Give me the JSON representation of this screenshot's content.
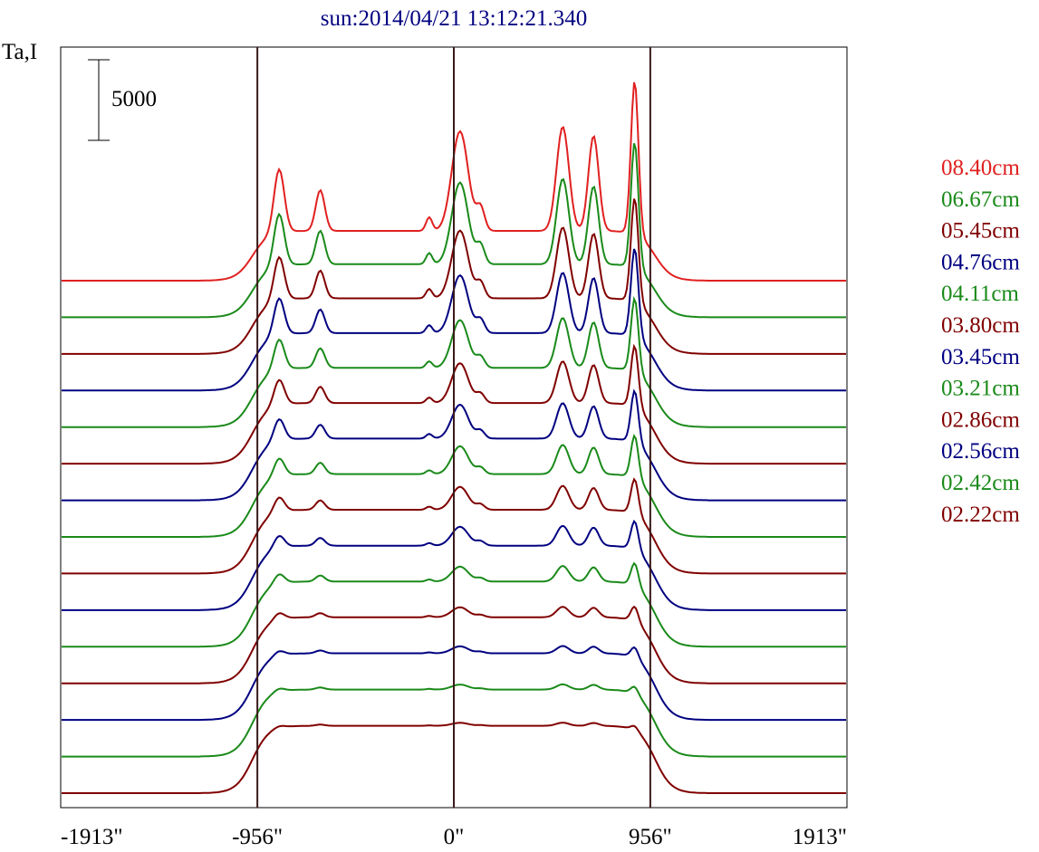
{
  "chart_data": {
    "type": "line",
    "title": "sun:2014/04/21 13:12:21.340",
    "ylabel": "Ta,I",
    "scale_bar_label": "5000",
    "scale_bar_value": 5000,
    "x_ticks": [
      "-1913\"",
      "-956\"",
      "0\"",
      "956\"",
      "1913\""
    ],
    "x_tick_values": [
      -1913,
      -956,
      0,
      956,
      1913
    ],
    "xlim": [
      -1913,
      1913
    ],
    "vertical_lines": [
      -956,
      0,
      956
    ],
    "legend": [
      {
        "label": "08.40cm",
        "color": "#e02020"
      },
      {
        "label": "06.67cm",
        "color": "#1a8a1a"
      },
      {
        "label": "05.45cm",
        "color": "#800000"
      },
      {
        "label": "04.76cm",
        "color": "#000080"
      },
      {
        "label": "04.11cm",
        "color": "#1a8a1a"
      },
      {
        "label": "03.80cm",
        "color": "#800000"
      },
      {
        "label": "03.45cm",
        "color": "#000080"
      },
      {
        "label": "03.21cm",
        "color": "#1a8a1a"
      },
      {
        "label": "02.86cm",
        "color": "#800000"
      },
      {
        "label": "02.56cm",
        "color": "#000080"
      },
      {
        "label": "02.42cm",
        "color": "#1a8a1a"
      },
      {
        "label": "02.22cm",
        "color": "#800000"
      }
    ],
    "series_colors": [
      "#e02020",
      "#1a8a1a",
      "#800000",
      "#000080",
      "#1a8a1a",
      "#800000",
      "#000080",
      "#1a8a1a",
      "#800000",
      "#000080",
      "#1a8a1a",
      "#800000",
      "#000080",
      "#1a8a1a",
      "#800000"
    ],
    "peak_scales": [
      1.0,
      0.82,
      0.68,
      0.58,
      0.48,
      0.4,
      0.34,
      0.28,
      0.23,
      0.19,
      0.15,
      0.1,
      0.07,
      0.05,
      0.03
    ],
    "frame_color": "#000000",
    "vline_color": "#3a1a1a"
  }
}
